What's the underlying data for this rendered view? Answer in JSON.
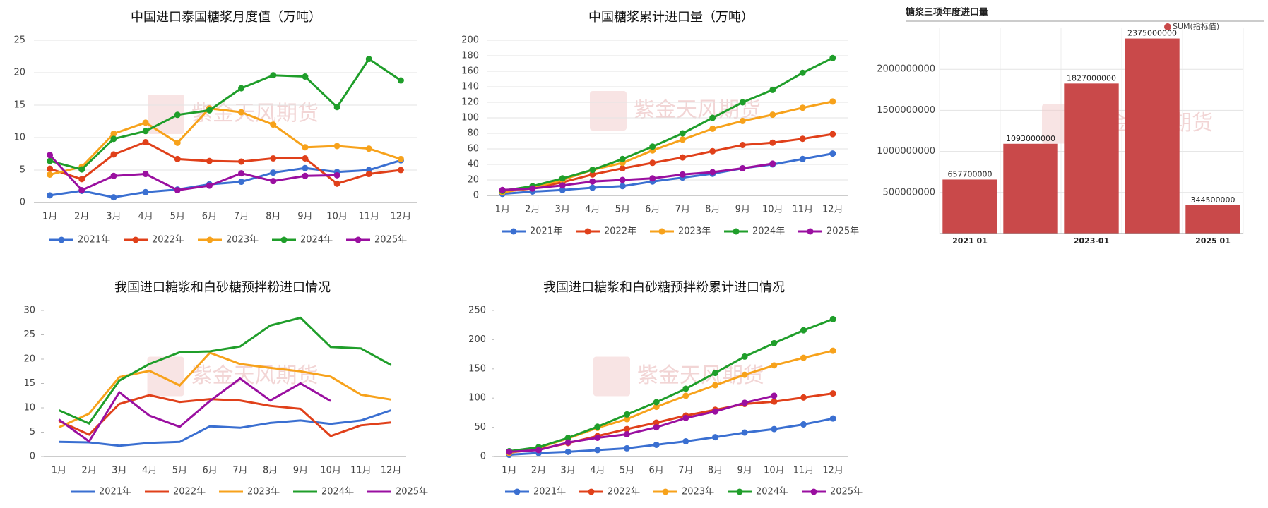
{
  "watermark": "紫金天风期货",
  "chart_data": [
    {
      "type": "line",
      "title": "中国进口泰国糖浆月度值（万吨）",
      "markers": true,
      "grid": true,
      "categories": [
        "1月",
        "2月",
        "3月",
        "4月",
        "5月",
        "6月",
        "7月",
        "8月",
        "9月",
        "10月",
        "11月",
        "12月"
      ],
      "ylim": [
        0,
        25
      ],
      "yticks": [
        0,
        5,
        10,
        15,
        20,
        25
      ],
      "series": [
        {
          "name": "2021年",
          "color": "#3a6fd1",
          "values": [
            1.1,
            1.8,
            0.8,
            1.6,
            2.0,
            2.8,
            3.2,
            4.6,
            5.3,
            4.7,
            5.0,
            6.5
          ]
        },
        {
          "name": "2022年",
          "color": "#e0401a",
          "values": [
            5.2,
            3.6,
            7.4,
            9.3,
            6.7,
            6.4,
            6.3,
            6.8,
            6.8,
            2.9,
            4.4,
            5.0
          ]
        },
        {
          "name": "2023年",
          "color": "#f7a21b",
          "values": [
            4.3,
            5.5,
            10.6,
            12.3,
            9.2,
            14.5,
            13.9,
            12.0,
            8.5,
            8.7,
            8.3,
            6.7
          ]
        },
        {
          "name": "2024年",
          "color": "#1f9e2a",
          "values": [
            6.4,
            5.1,
            9.8,
            11.0,
            13.5,
            14.2,
            17.6,
            19.6,
            19.4,
            14.7,
            22.1,
            18.8
          ]
        },
        {
          "name": "2025年",
          "color": "#9a0fa0",
          "values": [
            7.3,
            1.9,
            4.1,
            4.4,
            1.9,
            2.6,
            4.5,
            3.3,
            4.1,
            4.2,
            null,
            null
          ]
        }
      ]
    },
    {
      "type": "line",
      "title": "中国糖浆累计进口量（万吨）",
      "markers": true,
      "grid": true,
      "categories": [
        "1月",
        "2月",
        "3月",
        "4月",
        "5月",
        "6月",
        "7月",
        "8月",
        "9月",
        "10月",
        "11月",
        "12月"
      ],
      "ylim": [
        0,
        200
      ],
      "yticks": [
        0,
        20,
        40,
        60,
        80,
        100,
        120,
        140,
        160,
        180,
        200
      ],
      "series": [
        {
          "name": "2021年",
          "color": "#3a6fd1",
          "values": [
            2,
            5,
            7,
            10,
            12,
            18,
            23,
            28,
            35,
            40,
            47,
            54
          ]
        },
        {
          "name": "2022年",
          "color": "#e0401a",
          "values": [
            5,
            9,
            17,
            27,
            35,
            42,
            49,
            57,
            65,
            68,
            73,
            79
          ]
        },
        {
          "name": "2023年",
          "color": "#f7a21b",
          "values": [
            4,
            10,
            20,
            33,
            42,
            58,
            72,
            86,
            96,
            104,
            113,
            121
          ]
        },
        {
          "name": "2024年",
          "color": "#1f9e2a",
          "values": [
            6,
            12,
            22,
            33,
            47,
            63,
            80,
            100,
            120,
            136,
            158,
            177
          ]
        },
        {
          "name": "2025年",
          "color": "#9a0fa0",
          "values": [
            7,
            9,
            13,
            18,
            20,
            22,
            27,
            30,
            35,
            41,
            null,
            null
          ]
        }
      ]
    },
    {
      "type": "bar",
      "title": "糖浆三项年度进口量",
      "grid": true,
      "legend": "top-right",
      "categories": [
        "2021 01",
        null,
        "2023-01",
        null,
        "2025 01"
      ],
      "ylim": [
        0,
        2500000000
      ],
      "yticks": [
        500000000,
        1000000000,
        1500000000,
        2000000000
      ],
      "series": [
        {
          "name": "SUM(指标值)",
          "color": "#c9494a",
          "values": [
            657700000,
            1093000000,
            1827000000,
            2375000000,
            344500000
          ]
        }
      ]
    },
    {
      "type": "line",
      "title": "我国进口糖浆和白砂糖预拌粉进口情况",
      "markers": false,
      "grid": false,
      "categories": [
        "1月",
        "2月",
        "3月",
        "4月",
        "5月",
        "6月",
        "7月",
        "8月",
        "9月",
        "10月",
        "11月",
        "12月"
      ],
      "ylim": [
        0,
        30
      ],
      "yticks": [
        0,
        5,
        10,
        15,
        20,
        25,
        30
      ],
      "series": [
        {
          "name": "2021年",
          "color": "#3a6fd1",
          "values": [
            3.0,
            2.9,
            2.2,
            2.8,
            3.0,
            6.2,
            5.9,
            6.9,
            7.4,
            6.7,
            7.4,
            9.5
          ]
        },
        {
          "name": "2022年",
          "color": "#e0401a",
          "values": [
            7.3,
            4.5,
            10.8,
            12.6,
            11.2,
            11.8,
            11.5,
            10.4,
            9.8,
            4.2,
            6.4,
            7.0
          ]
        },
        {
          "name": "2023年",
          "color": "#f7a21b",
          "values": [
            6.0,
            8.8,
            16.3,
            17.6,
            14.6,
            21.3,
            19.0,
            18.2,
            17.5,
            16.4,
            12.7,
            11.7
          ]
        },
        {
          "name": "2024年",
          "color": "#1f9e2a",
          "values": [
            9.5,
            6.8,
            15.6,
            19.0,
            21.4,
            21.6,
            22.6,
            26.9,
            28.5,
            22.5,
            22.2,
            18.8
          ]
        },
        {
          "name": "2025年",
          "color": "#9a0fa0",
          "values": [
            7.6,
            3.1,
            13.2,
            8.4,
            6.1,
            11.4,
            16.0,
            11.5,
            15.0,
            11.4,
            null,
            null
          ]
        }
      ]
    },
    {
      "type": "line",
      "title": "我国进口糖浆和白砂糖预拌粉累计进口情况",
      "markers": true,
      "grid": false,
      "categories": [
        "1月",
        "2月",
        "3月",
        "4月",
        "5月",
        "6月",
        "7月",
        "8月",
        "9月",
        "10月",
        "11月",
        "12月"
      ],
      "ylim": [
        0,
        250
      ],
      "yticks": [
        0,
        50,
        100,
        150,
        200,
        250
      ],
      "series": [
        {
          "name": "2021年",
          "color": "#3a6fd1",
          "values": [
            3,
            6,
            8,
            11,
            14,
            20,
            26,
            33,
            41,
            47,
            55,
            65
          ]
        },
        {
          "name": "2022年",
          "color": "#e0401a",
          "values": [
            7,
            12,
            23,
            35,
            47,
            58,
            70,
            80,
            90,
            94,
            101,
            108
          ]
        },
        {
          "name": "2023年",
          "color": "#f7a21b",
          "values": [
            6,
            15,
            31,
            49,
            64,
            85,
            104,
            122,
            140,
            156,
            169,
            181
          ]
        },
        {
          "name": "2024年",
          "color": "#1f9e2a",
          "values": [
            9,
            16,
            32,
            51,
            72,
            93,
            116,
            143,
            171,
            194,
            216,
            235
          ]
        },
        {
          "name": "2025年",
          "color": "#9a0fa0",
          "values": [
            8,
            11,
            24,
            32,
            38,
            50,
            66,
            77,
            92,
            104,
            null,
            null
          ]
        }
      ]
    }
  ]
}
